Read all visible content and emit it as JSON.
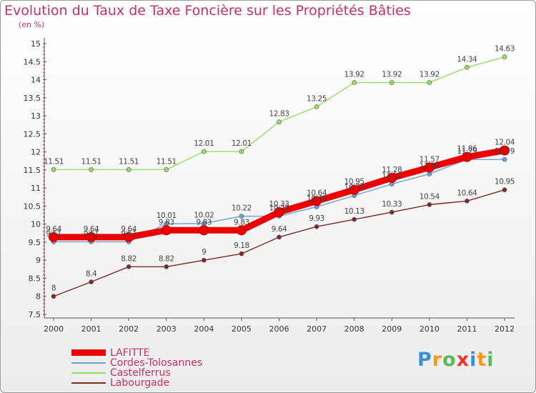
{
  "header": {
    "title": "Evolution du Taux de Taxe Foncière sur les Propriétés Bâties",
    "unit": "(en %)"
  },
  "logo": {
    "text": "Proxiti",
    "letters": [
      "P",
      "r",
      "o",
      "x",
      "i",
      "t",
      "i"
    ]
  },
  "chart_data": {
    "type": "line",
    "title": "Evolution du Taux de Taxe Foncière sur les Propriétés Bâties",
    "ylabel": "(en %)",
    "xlabel": "",
    "x": [
      "2000",
      "2001",
      "2002",
      "2003",
      "2004",
      "2005",
      "2006",
      "2007",
      "2008",
      "2009",
      "2010",
      "2011",
      "2012"
    ],
    "ylim": [
      7.5,
      15
    ],
    "yticks": [
      "7.5",
      "8",
      "8.5",
      "9",
      "9.5",
      "10",
      "10.5",
      "11",
      "11.5",
      "12",
      "12.5",
      "13",
      "13.5",
      "14",
      "14.5",
      "15"
    ],
    "grid": false,
    "legend_position": "bottom-left",
    "series": [
      {
        "name": "LAFITTE",
        "color": "#ee0000",
        "values": [
          9.64,
          9.64,
          9.64,
          9.83,
          9.83,
          9.83,
          10.33,
          10.64,
          10.95,
          11.28,
          11.57,
          11.86,
          12.04
        ],
        "labels": [
          "9.64",
          "9.64",
          "9.64",
          "9.83",
          "9.83",
          "9.83",
          "10.33",
          "10.64",
          "10.95",
          "11.28",
          "11.57",
          "11.86",
          "12.04"
        ]
      },
      {
        "name": "Cordes-Tolosannes",
        "color": "#6d9fd2",
        "values": [
          9.51,
          9.51,
          9.51,
          10.01,
          10.02,
          10.22,
          10.22,
          10.48,
          10.79,
          11.11,
          11.39,
          11.79,
          11.79
        ],
        "labels": [
          "9.51",
          "9.51",
          "9.51",
          "10.01",
          "10.02",
          "10.22",
          "10.22",
          "10.48",
          "10.79",
          "11.11",
          "11.39",
          "11.79",
          "11.79"
        ]
      },
      {
        "name": "Castelferrus",
        "color": "#99dd66",
        "values": [
          11.51,
          11.51,
          11.51,
          11.51,
          12.01,
          12.01,
          12.83,
          13.25,
          13.92,
          13.92,
          13.92,
          14.34,
          14.63
        ],
        "labels": [
          "11.51",
          "11.51",
          "11.51",
          "11.51",
          "12.01",
          "12.01",
          "12.83",
          "13.25",
          "13.92",
          "13.92",
          "13.92",
          "14.34",
          "14.63"
        ]
      },
      {
        "name": "Labourgade",
        "color": "#7a2a2a",
        "values": [
          8,
          8.4,
          8.82,
          8.82,
          9,
          9.18,
          9.64,
          9.93,
          10.13,
          10.33,
          10.54,
          10.64,
          10.95
        ],
        "labels": [
          "8",
          "8.4",
          "8.82",
          "8.82",
          "9",
          "9.18",
          "9.64",
          "9.93",
          "10.13",
          "10.33",
          "10.54",
          "10.64",
          "10.95"
        ]
      }
    ]
  }
}
